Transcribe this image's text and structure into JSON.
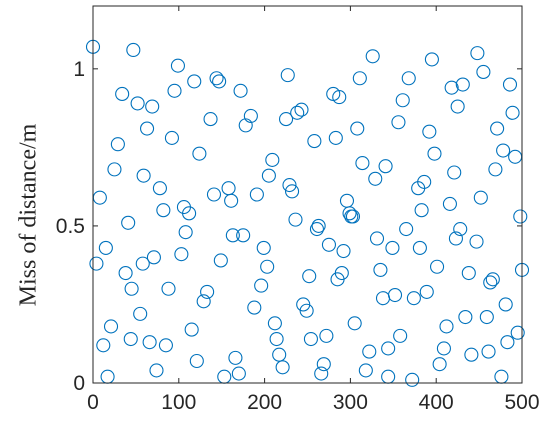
{
  "chart_data": {
    "type": "scatter",
    "ylabel": "Miss of distance/m",
    "color": "#0072bd",
    "x": [
      0,
      12,
      25,
      38,
      47,
      55,
      63,
      74,
      82,
      95,
      103,
      115,
      124,
      133,
      147,
      158,
      166,
      175,
      184,
      196,
      205,
      214,
      227,
      236,
      245,
      258,
      266,
      275,
      287,
      296,
      305,
      314,
      326,
      335,
      344,
      356,
      365,
      374,
      386,
      395,
      404,
      416,
      425,
      434,
      447,
      455,
      466,
      478,
      486,
      495,
      500,
      4,
      17,
      29,
      41,
      52,
      66,
      78,
      88,
      99,
      108,
      121,
      137,
      149,
      161,
      172,
      188,
      199,
      209,
      221,
      232,
      243,
      252,
      263,
      272,
      283,
      292,
      301,
      311,
      322,
      331,
      341,
      352,
      361,
      372,
      383,
      392,
      401,
      412,
      421,
      431,
      441,
      452,
      463,
      471,
      483,
      492,
      8,
      21,
      34,
      45,
      59,
      71,
      85,
      92,
      106,
      118,
      129,
      141,
      153,
      163,
      178,
      191,
      203,
      217,
      229,
      238,
      249,
      261,
      269,
      280,
      290,
      299,
      308,
      318,
      329,
      338,
      349,
      358,
      368,
      379,
      389,
      398,
      409,
      418,
      428,
      438,
      448,
      459,
      469,
      476,
      489,
      498,
      15,
      44,
      69,
      112,
      144,
      170,
      225,
      254,
      285,
      303,
      344,
      381,
      423,
      461,
      481,
      58,
      212
    ],
    "values": [
      1.07,
      0.12,
      0.68,
      0.35,
      1.06,
      0.22,
      0.81,
      0.04,
      0.55,
      0.93,
      0.41,
      0.17,
      0.73,
      0.29,
      0.96,
      0.62,
      0.08,
      0.47,
      0.85,
      0.31,
      0.66,
      0.14,
      0.98,
      0.52,
      0.25,
      0.77,
      0.03,
      0.44,
      0.91,
      0.58,
      0.19,
      0.7,
      1.04,
      0.36,
      0.11,
      0.83,
      0.49,
      0.27,
      0.64,
      1.03,
      0.06,
      0.57,
      0.88,
      0.21,
      0.45,
      0.99,
      0.33,
      0.74,
      0.95,
      0.16,
      0.36,
      0.38,
      0.02,
      0.76,
      0.51,
      0.89,
      0.13,
      0.62,
      0.3,
      1.01,
      0.48,
      0.07,
      0.84,
      0.39,
      0.58,
      0.93,
      0.24,
      0.43,
      0.71,
      0.05,
      0.61,
      0.87,
      0.34,
      0.5,
      0.15,
      0.78,
      0.42,
      0.53,
      0.97,
      0.1,
      0.46,
      0.69,
      0.28,
      0.9,
      0.01,
      0.55,
      0.8,
      0.37,
      0.18,
      0.67,
      0.95,
      0.09,
      0.59,
      0.32,
      0.81,
      0.13,
      0.72,
      0.59,
      0.18,
      0.92,
      0.3,
      0.66,
      0.4,
      0.12,
      0.78,
      0.56,
      0.96,
      0.26,
      0.6,
      0.02,
      0.47,
      0.82,
      0.6,
      0.37,
      0.09,
      0.63,
      0.86,
      0.23,
      0.49,
      0.06,
      0.92,
      0.35,
      0.54,
      0.81,
      0.04,
      0.65,
      0.27,
      0.43,
      0.15,
      0.97,
      0.62,
      0.29,
      0.73,
      0.11,
      0.94,
      0.49,
      0.35,
      1.05,
      0.21,
      0.68,
      0.02,
      0.86,
      0.53,
      0.43,
      0.14,
      0.88,
      0.54,
      0.97,
      0.03,
      0.84,
      0.14,
      0.33,
      0.53,
      0.02,
      0.43,
      0.46,
      0.1,
      0.25,
      0.38,
      0.19
    ],
    "xlim": [
      0,
      500
    ],
    "ylim": [
      0,
      1.2
    ],
    "xticks": [
      0,
      100,
      200,
      300,
      400,
      500
    ],
    "yticks": [
      0,
      0.5,
      1
    ]
  }
}
